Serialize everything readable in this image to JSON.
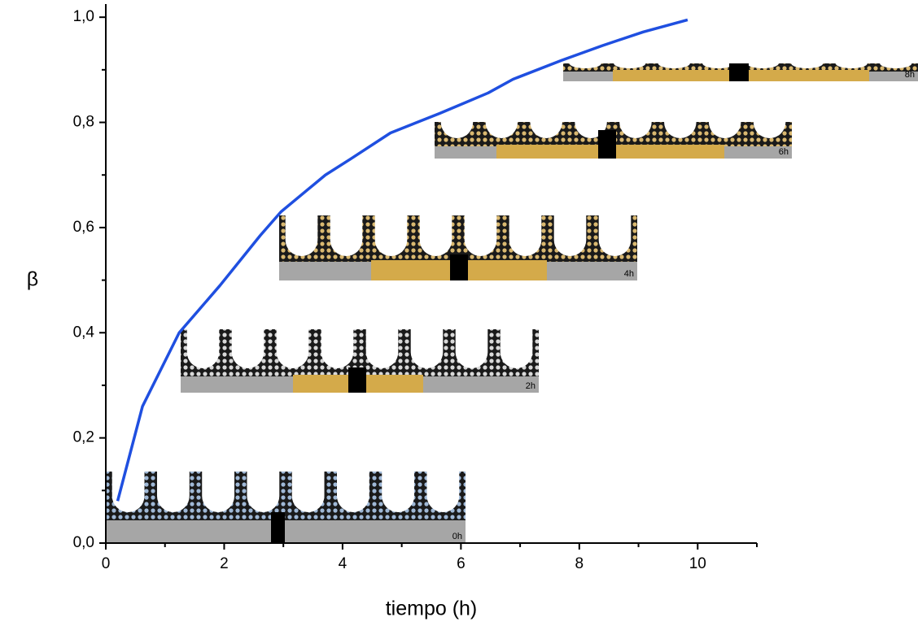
{
  "chart_data": {
    "type": "line",
    "x_label": "tiempo (h)",
    "y_label": "β",
    "xlim": [
      0,
      11
    ],
    "ylim": [
      0,
      1.025
    ],
    "xticks": [
      0,
      2,
      4,
      6,
      8,
      10
    ],
    "yticks": [
      {
        "value": 0,
        "label": "0,0"
      },
      {
        "value": 0.2,
        "label": "0,2"
      },
      {
        "value": 0.4,
        "label": "0,4"
      },
      {
        "value": 0.6,
        "label": "0,6"
      },
      {
        "value": 0.8,
        "label": "0,8"
      },
      {
        "value": 1.0,
        "label": "1,0"
      }
    ],
    "series": [
      {
        "color": "#1f4fe0",
        "x": [
          0.2,
          0.62,
          1.24,
          1.93,
          2.61,
          2.96,
          3.71,
          4.13,
          4.81,
          5.64,
          6.46,
          6.88,
          7.7,
          8.39,
          9.08,
          9.83
        ],
        "values": [
          0.08,
          0.26,
          0.4,
          0.49,
          0.585,
          0.63,
          0.7,
          0.73,
          0.78,
          0.817,
          0.856,
          0.882,
          0.918,
          0.946,
          0.972,
          0.995
        ]
      }
    ],
    "annotations": [
      "0h",
      "2h",
      "4h",
      "6h",
      "8h"
    ]
  }
}
